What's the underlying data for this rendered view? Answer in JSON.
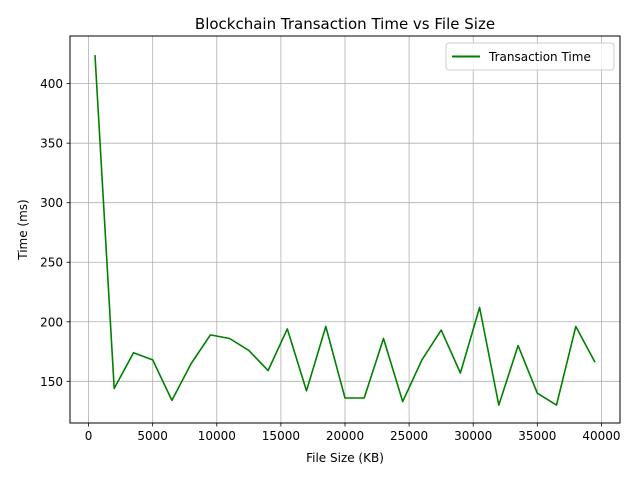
{
  "chart_data": {
    "type": "line",
    "title": "Blockchain Transaction Time vs File Size",
    "xlabel": "File Size (KB)",
    "ylabel": "Time (ms)",
    "xlim": [
      -1450,
      41450
    ],
    "ylim": [
      115,
      440
    ],
    "xticks": [
      0,
      5000,
      10000,
      15000,
      20000,
      25000,
      30000,
      35000,
      40000
    ],
    "yticks": [
      150,
      200,
      250,
      300,
      350,
      400
    ],
    "grid": true,
    "legend_position": "top-right",
    "line_color": "#008000",
    "series": [
      {
        "name": "Transaction Time",
        "x": [
          500,
          2000,
          3500,
          5000,
          6500,
          8000,
          9500,
          11000,
          12500,
          14000,
          15500,
          17000,
          18500,
          20000,
          21500,
          23000,
          24500,
          26000,
          27500,
          29000,
          30500,
          32000,
          33500,
          35000,
          36500,
          38000,
          39500
        ],
        "y": [
          424,
          144,
          174,
          168,
          134,
          165,
          189,
          186,
          176,
          159,
          194,
          142,
          196,
          136,
          136,
          186,
          133,
          168,
          193,
          157,
          212,
          130,
          180,
          140,
          130,
          196,
          166
        ]
      }
    ]
  }
}
